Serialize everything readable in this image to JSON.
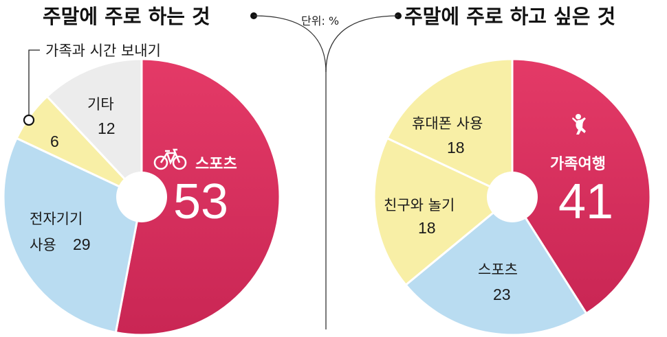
{
  "unit_label": "단위: %",
  "colors": {
    "highlight": "#de3462",
    "blue": "#b9dcf1",
    "yellow": "#f8efa6",
    "gray": "#ececec"
  },
  "chart_data": [
    {
      "type": "pie",
      "title": "주말에 주로 하는 것",
      "slices": [
        {
          "label": "스포츠",
          "value": 53,
          "color": "#de3462",
          "icon": "bicycle-icon"
        },
        {
          "label": "전자기기 사용",
          "value": 29,
          "color": "#b9dcf1"
        },
        {
          "label": "가족과 시간 보내기",
          "value": 6,
          "color": "#f8efa6"
        },
        {
          "label": "기타",
          "value": 12,
          "color": "#ececec"
        }
      ]
    },
    {
      "type": "pie",
      "title": "주말에 주로 하고 싶은 것",
      "slices": [
        {
          "label": "가족여행",
          "value": 41,
          "color": "#de3462",
          "icon": "person-jumping-icon"
        },
        {
          "label": "스포츠",
          "value": 23,
          "color": "#b9dcf1"
        },
        {
          "label": "친구와 놀기",
          "value": 18,
          "color": "#f8efa6"
        },
        {
          "label": "휴대폰 사용",
          "value": 18,
          "color": "#f8efa6"
        }
      ]
    }
  ],
  "display": {
    "left": {
      "big_value": "53",
      "highlight_label": "스포츠",
      "elec_line1": "전자기기",
      "elec_line2": "사용",
      "elec_value": "29",
      "family_callout": "가족과 시간 보내기",
      "family_value": "6",
      "other_label": "기타",
      "other_value": "12"
    },
    "right": {
      "big_value": "41",
      "highlight_label": "가족여행",
      "sports_label": "스포츠",
      "sports_value": "23",
      "friends_label": "친구와 놀기",
      "friends_value": "18",
      "phone_label": "휴대폰 사용",
      "phone_value": "18"
    }
  }
}
